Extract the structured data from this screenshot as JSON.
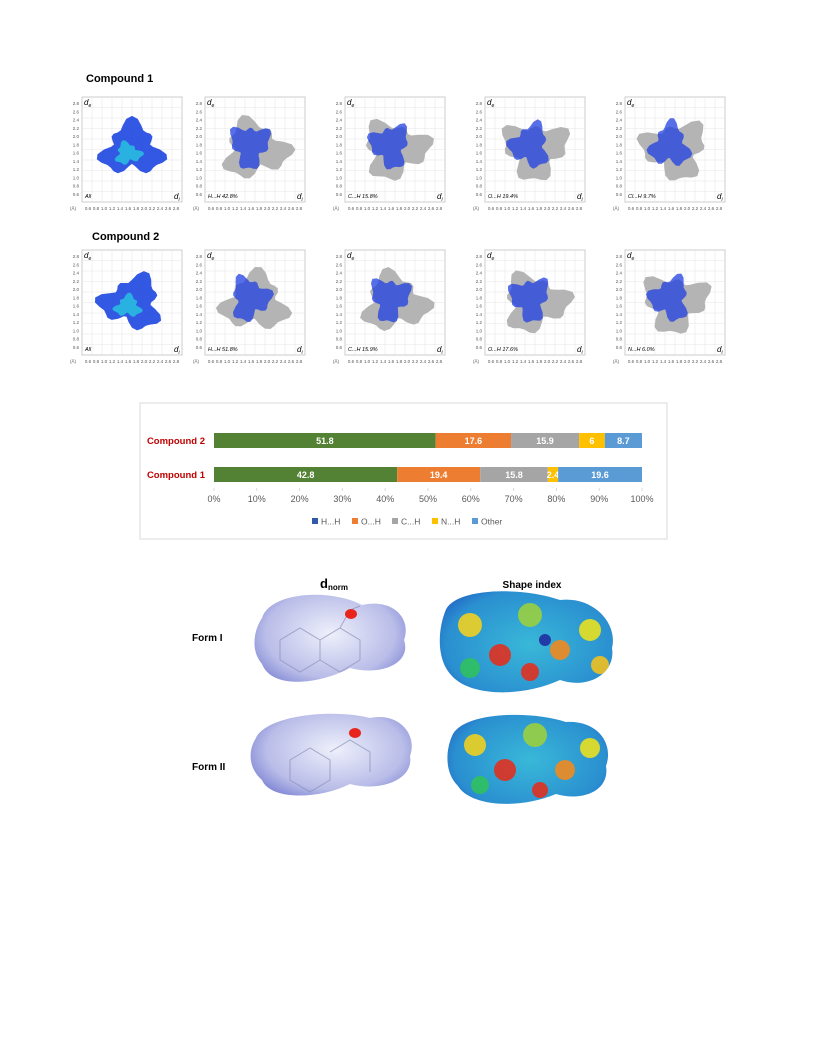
{
  "fingerprints": {
    "axes": {
      "y_label": {
        "main": "d",
        "sub": "e"
      },
      "x_label": {
        "main": "d",
        "sub": "i"
      },
      "unit": "(Å)",
      "y_ticks": [
        "2.8",
        "2.6",
        "2.4",
        "2.2",
        "2.0",
        "1.8",
        "1.6",
        "1.4",
        "1.2",
        "1.0",
        "0.8",
        "0.6"
      ],
      "x_ticks": [
        "0.6",
        "0.8",
        "1.0",
        "1.2",
        "1.4",
        "1.6",
        "1.8",
        "2.0",
        "2.2",
        "2.4",
        "2.6",
        "2.8"
      ]
    },
    "groups": [
      {
        "title": "Compound 1",
        "panels": [
          "All",
          "H...H 42.8%",
          "C...H 15.8%",
          "O...H 19.4%",
          "Cl...H 9.7%"
        ]
      },
      {
        "title": "Compound 2",
        "panels": [
          "All",
          "H...H 51.8%",
          "C...H 15.9%",
          "O...H 17.6%",
          "N...H 6.0%"
        ]
      }
    ]
  },
  "chart_data": {
    "type": "bar",
    "orientation": "horizontal",
    "stacked": true,
    "categories": [
      "Compound 2",
      "Compound 1"
    ],
    "series": [
      {
        "name": "H...H",
        "color": "#548235",
        "legend_color": "#2e5aa8",
        "values": [
          51.8,
          42.8
        ]
      },
      {
        "name": "O...H",
        "color": "#ed7d31",
        "legend_color": "#ed7d31",
        "values": [
          17.6,
          19.4
        ]
      },
      {
        "name": "C...H",
        "color": "#a5a5a5",
        "legend_color": "#a5a5a5",
        "values": [
          15.9,
          15.8
        ]
      },
      {
        "name": "N...H",
        "color": "#ffc000",
        "legend_color": "#ffc000",
        "values": [
          6,
          2.4
        ]
      },
      {
        "name": "Other",
        "color": "#5b9bd5",
        "legend_color": "#5b9bd5",
        "values": [
          8.7,
          19.6
        ]
      }
    ],
    "xlim": [
      0,
      100
    ],
    "xticks": [
      {
        "value": 0,
        "label": "0%"
      },
      {
        "value": 10,
        "label": "10%"
      },
      {
        "value": 20,
        "label": "20%"
      },
      {
        "value": 30,
        "label": "30%"
      },
      {
        "value": 40,
        "label": "40%"
      },
      {
        "value": 50,
        "label": "50%"
      },
      {
        "value": 60,
        "label": "60%"
      },
      {
        "value": 70,
        "label": "70%"
      },
      {
        "value": 80,
        "label": "80%"
      },
      {
        "value": 90,
        "label": "90%"
      },
      {
        "value": 100,
        "label": "100%"
      }
    ],
    "legend": "bottom"
  },
  "surfaces": {
    "columns": [
      {
        "main": "d",
        "sub": "norm"
      },
      {
        "main": "Shape index"
      }
    ],
    "rows": [
      "Form I",
      "Form II"
    ]
  }
}
